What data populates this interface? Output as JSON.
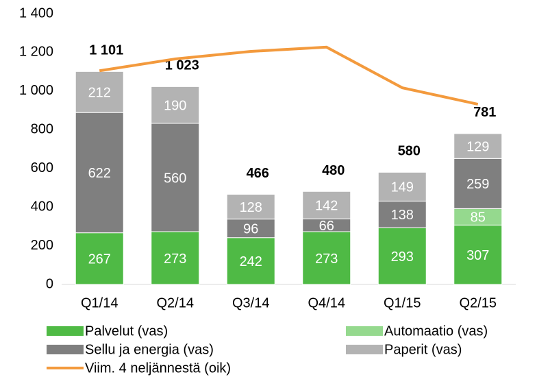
{
  "chart_data": {
    "type": "bar",
    "stacked": true,
    "categories": [
      "Q1/14",
      "Q2/14",
      "Q3/14",
      "Q4/14",
      "Q1/15",
      "Q2/15"
    ],
    "series": [
      {
        "name": "Palvelut (vas)",
        "color": "#4fba45",
        "values": [
          267,
          273,
          242,
          273,
          293,
          307
        ]
      },
      {
        "name": "Automaatio (vas)",
        "color": "#95d98e",
        "values": [
          null,
          null,
          null,
          null,
          null,
          85
        ]
      },
      {
        "name": "Sellu ja energia (vas)",
        "color": "#7f7f7f",
        "values": [
          622,
          560,
          96,
          66,
          138,
          259
        ]
      },
      {
        "name": "Paperit (vas)",
        "color": "#b3b3b3",
        "values": [
          212,
          190,
          128,
          142,
          149,
          129
        ]
      }
    ],
    "line": {
      "name": "Viim. 4 neljännestä (oik)",
      "color": "#f39a3d",
      "values": [
        1105,
        1166,
        1205,
        1227,
        1017,
        932
      ]
    },
    "totals": [
      1101,
      1023,
      466,
      480,
      580,
      781
    ],
    "totals_labels": [
      "1 101",
      "1 023",
      "466",
      "480",
      "580",
      "781"
    ],
    "ylim": [
      0,
      1400
    ],
    "yticks": [
      0,
      200,
      400,
      600,
      800,
      {
        "value": 1000,
        "label": "1 000"
      },
      {
        "value": 1200,
        "label": "1 200"
      },
      {
        "value": 1400,
        "label": "1 400"
      }
    ]
  }
}
